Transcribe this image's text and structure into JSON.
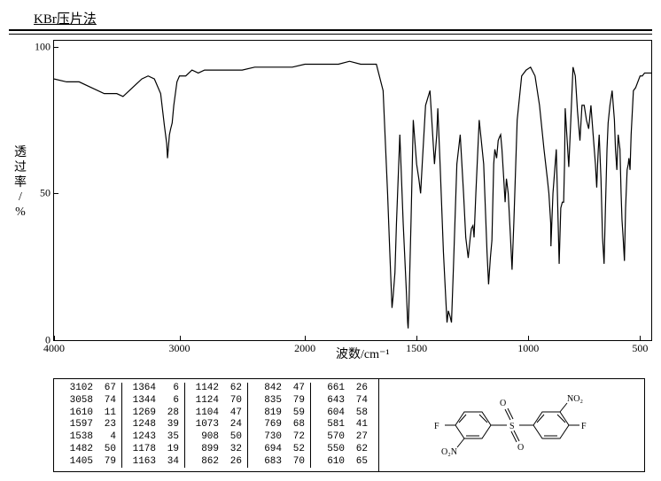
{
  "header": "KBr压片法",
  "chart": {
    "type": "line",
    "ylabel_lines": [
      "透",
      "过",
      "率",
      "/",
      "%"
    ],
    "xlabel": "波数/cm⁻¹",
    "yticks": [
      0,
      50,
      100
    ],
    "xticks": [
      4000,
      3000,
      2000,
      1500,
      1000,
      500
    ],
    "xmin": 4000,
    "xmax": 450,
    "ymin": 0,
    "ymax": 102,
    "line_color": "#000000",
    "bg_color": "#ffffff",
    "points": [
      [
        4000,
        89
      ],
      [
        3900,
        88
      ],
      [
        3800,
        88
      ],
      [
        3700,
        86
      ],
      [
        3600,
        84
      ],
      [
        3500,
        84
      ],
      [
        3450,
        83
      ],
      [
        3400,
        85
      ],
      [
        3350,
        87
      ],
      [
        3300,
        89
      ],
      [
        3250,
        90
      ],
      [
        3200,
        89
      ],
      [
        3150,
        84
      ],
      [
        3120,
        73
      ],
      [
        3102,
        67
      ],
      [
        3095,
        62
      ],
      [
        3080,
        70
      ],
      [
        3070,
        72
      ],
      [
        3058,
        74
      ],
      [
        3045,
        80
      ],
      [
        3020,
        88
      ],
      [
        3000,
        90
      ],
      [
        2950,
        90
      ],
      [
        2900,
        92
      ],
      [
        2850,
        91
      ],
      [
        2800,
        92
      ],
      [
        2700,
        92
      ],
      [
        2600,
        92
      ],
      [
        2500,
        92
      ],
      [
        2400,
        93
      ],
      [
        2300,
        93
      ],
      [
        2200,
        93
      ],
      [
        2100,
        93
      ],
      [
        2000,
        94
      ],
      [
        1950,
        94
      ],
      [
        1900,
        94
      ],
      [
        1850,
        94
      ],
      [
        1800,
        95
      ],
      [
        1750,
        94
      ],
      [
        1700,
        94
      ],
      [
        1680,
        94
      ],
      [
        1650,
        85
      ],
      [
        1630,
        50
      ],
      [
        1620,
        30
      ],
      [
        1610,
        11
      ],
      [
        1605,
        15
      ],
      [
        1600,
        20
      ],
      [
        1597,
        23
      ],
      [
        1590,
        40
      ],
      [
        1575,
        70
      ],
      [
        1560,
        40
      ],
      [
        1545,
        15
      ],
      [
        1540,
        6
      ],
      [
        1538,
        4
      ],
      [
        1535,
        10
      ],
      [
        1525,
        40
      ],
      [
        1515,
        75
      ],
      [
        1500,
        60
      ],
      [
        1490,
        55
      ],
      [
        1482,
        50
      ],
      [
        1475,
        60
      ],
      [
        1460,
        80
      ],
      [
        1440,
        85
      ],
      [
        1420,
        60
      ],
      [
        1410,
        70
      ],
      [
        1405,
        79
      ],
      [
        1395,
        60
      ],
      [
        1380,
        30
      ],
      [
        1370,
        15
      ],
      [
        1364,
        6
      ],
      [
        1358,
        10
      ],
      [
        1350,
        8
      ],
      [
        1344,
        6
      ],
      [
        1335,
        25
      ],
      [
        1320,
        60
      ],
      [
        1305,
        70
      ],
      [
        1290,
        50
      ],
      [
        1280,
        35
      ],
      [
        1269,
        28
      ],
      [
        1260,
        35
      ],
      [
        1255,
        38
      ],
      [
        1248,
        39
      ],
      [
        1245,
        37
      ],
      [
        1243,
        35
      ],
      [
        1235,
        50
      ],
      [
        1220,
        75
      ],
      [
        1200,
        60
      ],
      [
        1185,
        30
      ],
      [
        1178,
        19
      ],
      [
        1170,
        28
      ],
      [
        1163,
        34
      ],
      [
        1155,
        60
      ],
      [
        1150,
        65
      ],
      [
        1142,
        62
      ],
      [
        1135,
        68
      ],
      [
        1130,
        69
      ],
      [
        1124,
        70
      ],
      [
        1118,
        65
      ],
      [
        1110,
        55
      ],
      [
        1104,
        47
      ],
      [
        1098,
        55
      ],
      [
        1090,
        50
      ],
      [
        1080,
        35
      ],
      [
        1073,
        24
      ],
      [
        1065,
        40
      ],
      [
        1050,
        75
      ],
      [
        1030,
        90
      ],
      [
        1010,
        92
      ],
      [
        990,
        93
      ],
      [
        970,
        90
      ],
      [
        950,
        80
      ],
      [
        930,
        65
      ],
      [
        915,
        55
      ],
      [
        908,
        50
      ],
      [
        900,
        40
      ],
      [
        899,
        32
      ],
      [
        890,
        50
      ],
      [
        875,
        65
      ],
      [
        862,
        26
      ],
      [
        855,
        45
      ],
      [
        848,
        47
      ],
      [
        842,
        47
      ],
      [
        838,
        60
      ],
      [
        835,
        79
      ],
      [
        828,
        70
      ],
      [
        819,
        59
      ],
      [
        810,
        75
      ],
      [
        800,
        93
      ],
      [
        790,
        90
      ],
      [
        780,
        78
      ],
      [
        769,
        68
      ],
      [
        760,
        80
      ],
      [
        750,
        80
      ],
      [
        740,
        75
      ],
      [
        730,
        72
      ],
      [
        720,
        80
      ],
      [
        710,
        70
      ],
      [
        700,
        60
      ],
      [
        694,
        52
      ],
      [
        690,
        60
      ],
      [
        687,
        65
      ],
      [
        683,
        70
      ],
      [
        675,
        55
      ],
      [
        668,
        35
      ],
      [
        661,
        26
      ],
      [
        655,
        45
      ],
      [
        648,
        65
      ],
      [
        643,
        74
      ],
      [
        635,
        80
      ],
      [
        625,
        85
      ],
      [
        615,
        75
      ],
      [
        610,
        65
      ],
      [
        604,
        58
      ],
      [
        598,
        70
      ],
      [
        590,
        65
      ],
      [
        585,
        50
      ],
      [
        581,
        41
      ],
      [
        576,
        35
      ],
      [
        570,
        27
      ],
      [
        565,
        45
      ],
      [
        558,
        58
      ],
      [
        553,
        60
      ],
      [
        550,
        62
      ],
      [
        545,
        58
      ],
      [
        540,
        70
      ],
      [
        530,
        85
      ],
      [
        520,
        86
      ],
      [
        510,
        88
      ],
      [
        500,
        90
      ],
      [
        490,
        90
      ],
      [
        480,
        91
      ],
      [
        470,
        91
      ],
      [
        460,
        91
      ],
      [
        450,
        91
      ]
    ]
  },
  "peak_table": {
    "columns": [
      [
        [
          "3102",
          "67"
        ],
        [
          "3058",
          "74"
        ],
        [
          "1610",
          "11"
        ],
        [
          "1597",
          "23"
        ],
        [
          "1538",
          "4"
        ],
        [
          "1482",
          "50"
        ],
        [
          "1405",
          "79"
        ]
      ],
      [
        [
          "1364",
          "6"
        ],
        [
          "1344",
          "6"
        ],
        [
          "1269",
          "28"
        ],
        [
          "1248",
          "39"
        ],
        [
          "1243",
          "35"
        ],
        [
          "1178",
          "19"
        ],
        [
          "1163",
          "34"
        ]
      ],
      [
        [
          "1142",
          "62"
        ],
        [
          "1124",
          "70"
        ],
        [
          "1104",
          "47"
        ],
        [
          "1073",
          "24"
        ],
        [
          "908",
          "50"
        ],
        [
          "899",
          "32"
        ],
        [
          "862",
          "26"
        ]
      ],
      [
        [
          "842",
          "47"
        ],
        [
          "835",
          "79"
        ],
        [
          "819",
          "59"
        ],
        [
          "769",
          "68"
        ],
        [
          "730",
          "72"
        ],
        [
          "694",
          "52"
        ],
        [
          "683",
          "70"
        ]
      ],
      [
        [
          "661",
          "26"
        ],
        [
          "643",
          "74"
        ],
        [
          "604",
          "58"
        ],
        [
          "581",
          "41"
        ],
        [
          "570",
          "27"
        ],
        [
          "550",
          "62"
        ],
        [
          "610",
          "65"
        ]
      ]
    ]
  },
  "molecule": {
    "labels": {
      "F_left": "F",
      "F_right": "F",
      "NO2_tl": "NO₂",
      "NO2_br": "NO₂",
      "S": "S",
      "O1": "O",
      "O2": "O"
    }
  }
}
